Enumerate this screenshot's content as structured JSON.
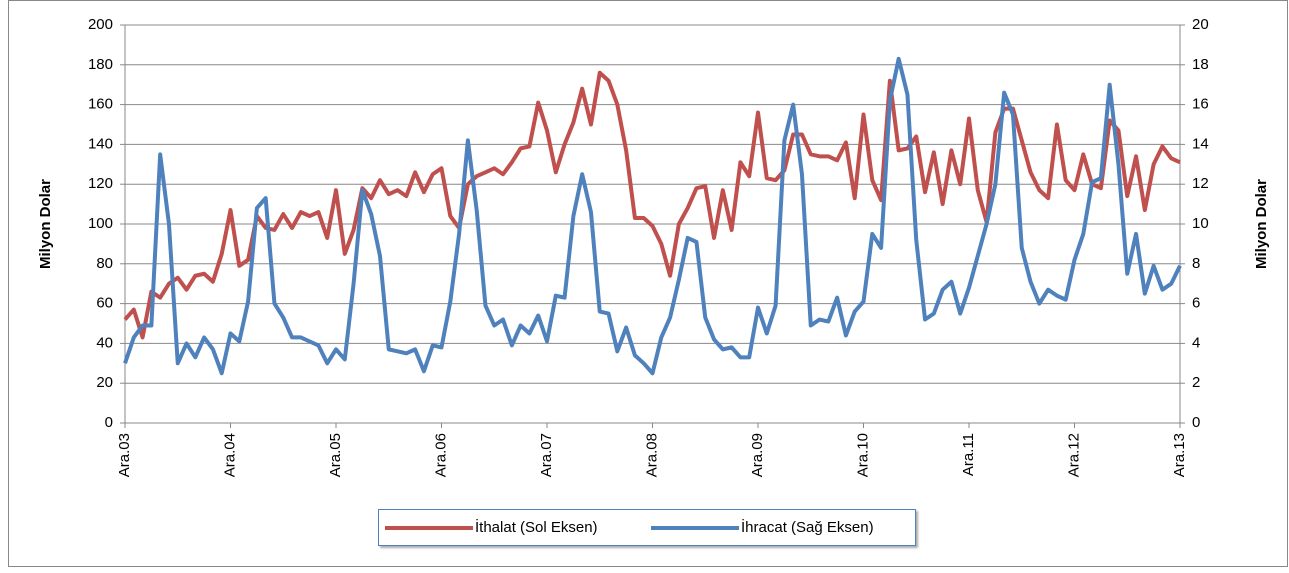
{
  "chart_data": {
    "type": "line",
    "categories": [
      "Ara.03",
      null,
      null,
      null,
      null,
      null,
      null,
      null,
      null,
      null,
      null,
      null,
      "Ara.04",
      null,
      null,
      null,
      null,
      null,
      null,
      null,
      null,
      null,
      null,
      null,
      "Ara.05",
      null,
      null,
      null,
      null,
      null,
      null,
      null,
      null,
      null,
      null,
      null,
      "Ara.06",
      null,
      null,
      null,
      null,
      null,
      null,
      null,
      null,
      null,
      null,
      null,
      "Ara.07",
      null,
      null,
      null,
      null,
      null,
      null,
      null,
      null,
      null,
      null,
      null,
      "Ara.08",
      null,
      null,
      null,
      null,
      null,
      null,
      null,
      null,
      null,
      null,
      null,
      "Ara.09",
      null,
      null,
      null,
      null,
      null,
      null,
      null,
      null,
      null,
      null,
      null,
      "Ara.10",
      null,
      null,
      null,
      null,
      null,
      null,
      null,
      null,
      null,
      null,
      null,
      "Ara.11",
      null,
      null,
      null,
      null,
      null,
      null,
      null,
      null,
      null,
      null,
      null,
      "Ara.12",
      null,
      null,
      null,
      null,
      null,
      null,
      null,
      null,
      null,
      null,
      null,
      "Ara.13"
    ],
    "series": [
      {
        "name": "İthalat (Sol Eksen)",
        "color": "#c0504d",
        "axis": "y",
        "values": [
          52,
          57,
          43,
          66,
          63,
          70,
          73,
          67,
          74,
          75,
          71,
          85,
          107,
          79,
          82,
          104,
          98,
          97,
          105,
          98,
          106,
          104,
          106,
          93,
          117,
          85,
          97,
          118,
          113,
          122,
          115,
          117,
          114,
          126,
          116,
          125,
          128,
          104,
          98,
          120,
          124,
          126,
          128,
          125,
          131,
          138,
          139,
          161,
          147,
          126,
          140,
          151,
          168,
          150,
          176,
          172,
          160,
          137,
          103,
          103,
          99,
          90,
          74,
          100,
          108,
          118,
          119,
          93,
          117,
          97,
          131,
          124,
          156,
          123,
          122,
          127,
          145,
          145,
          135,
          134,
          134,
          132,
          141,
          113,
          155,
          122,
          112,
          172,
          137,
          138,
          144,
          116,
          136,
          110,
          137,
          120,
          153,
          117,
          101,
          146,
          158,
          158,
          142,
          126,
          117,
          113,
          150,
          122,
          117,
          135,
          120,
          118,
          152,
          147,
          114,
          134,
          107,
          130,
          139,
          133,
          131
        ]
      },
      {
        "name": "İhracat (Sağ Eksen)",
        "color": "#4f81bd",
        "axis": "y2",
        "values": [
          3,
          4.3,
          4.9,
          4.9,
          13.5,
          10,
          3,
          4,
          3.3,
          4.3,
          3.7,
          2.5,
          4.5,
          4.1,
          6.1,
          10.8,
          11.3,
          6,
          5.3,
          4.3,
          4.3,
          4.1,
          3.9,
          3,
          3.7,
          3.2,
          7,
          11.7,
          10.5,
          8.4,
          3.7,
          3.6,
          3.5,
          3.7,
          2.6,
          3.9,
          3.8,
          6.1,
          9.5,
          14.2,
          10.7,
          5.9,
          4.9,
          5.2,
          3.9,
          4.9,
          4.5,
          5.4,
          4.1,
          6.4,
          6.3,
          10.4,
          12.5,
          10.6,
          5.6,
          5.5,
          3.6,
          4.8,
          3.4,
          3,
          2.5,
          4.3,
          5.3,
          7.2,
          9.3,
          9.1,
          5.3,
          4.2,
          3.7,
          3.8,
          3.3,
          3.3,
          5.8,
          4.5,
          5.9,
          14.2,
          16,
          12.5,
          4.9,
          5.2,
          5.1,
          6.3,
          4.4,
          5.6,
          6.1,
          9.5,
          8.8,
          16.2,
          18.3,
          16.5,
          9.2,
          5.2,
          5.5,
          6.7,
          7.1,
          5.5,
          6.8,
          8.4,
          10,
          12,
          16.6,
          15.5,
          8.8,
          7.1,
          6,
          6.7,
          6.4,
          6.2,
          8.2,
          9.5,
          12.1,
          12.3,
          17,
          13,
          7.5,
          9.5,
          6.5,
          7.9,
          6.7,
          7,
          7.9
        ]
      }
    ],
    "y_label": "Milyon Dolar",
    "y2_label": "Milyon Dolar",
    "ylim": [
      0,
      200
    ],
    "yticks": [
      0,
      20,
      40,
      60,
      80,
      100,
      120,
      140,
      160,
      180,
      200
    ],
    "y2lim": [
      0,
      20
    ],
    "y2ticks": [
      0,
      2,
      4,
      6,
      8,
      10,
      12,
      14,
      16,
      18,
      20
    ],
    "grid": true,
    "legend": "bottom"
  }
}
